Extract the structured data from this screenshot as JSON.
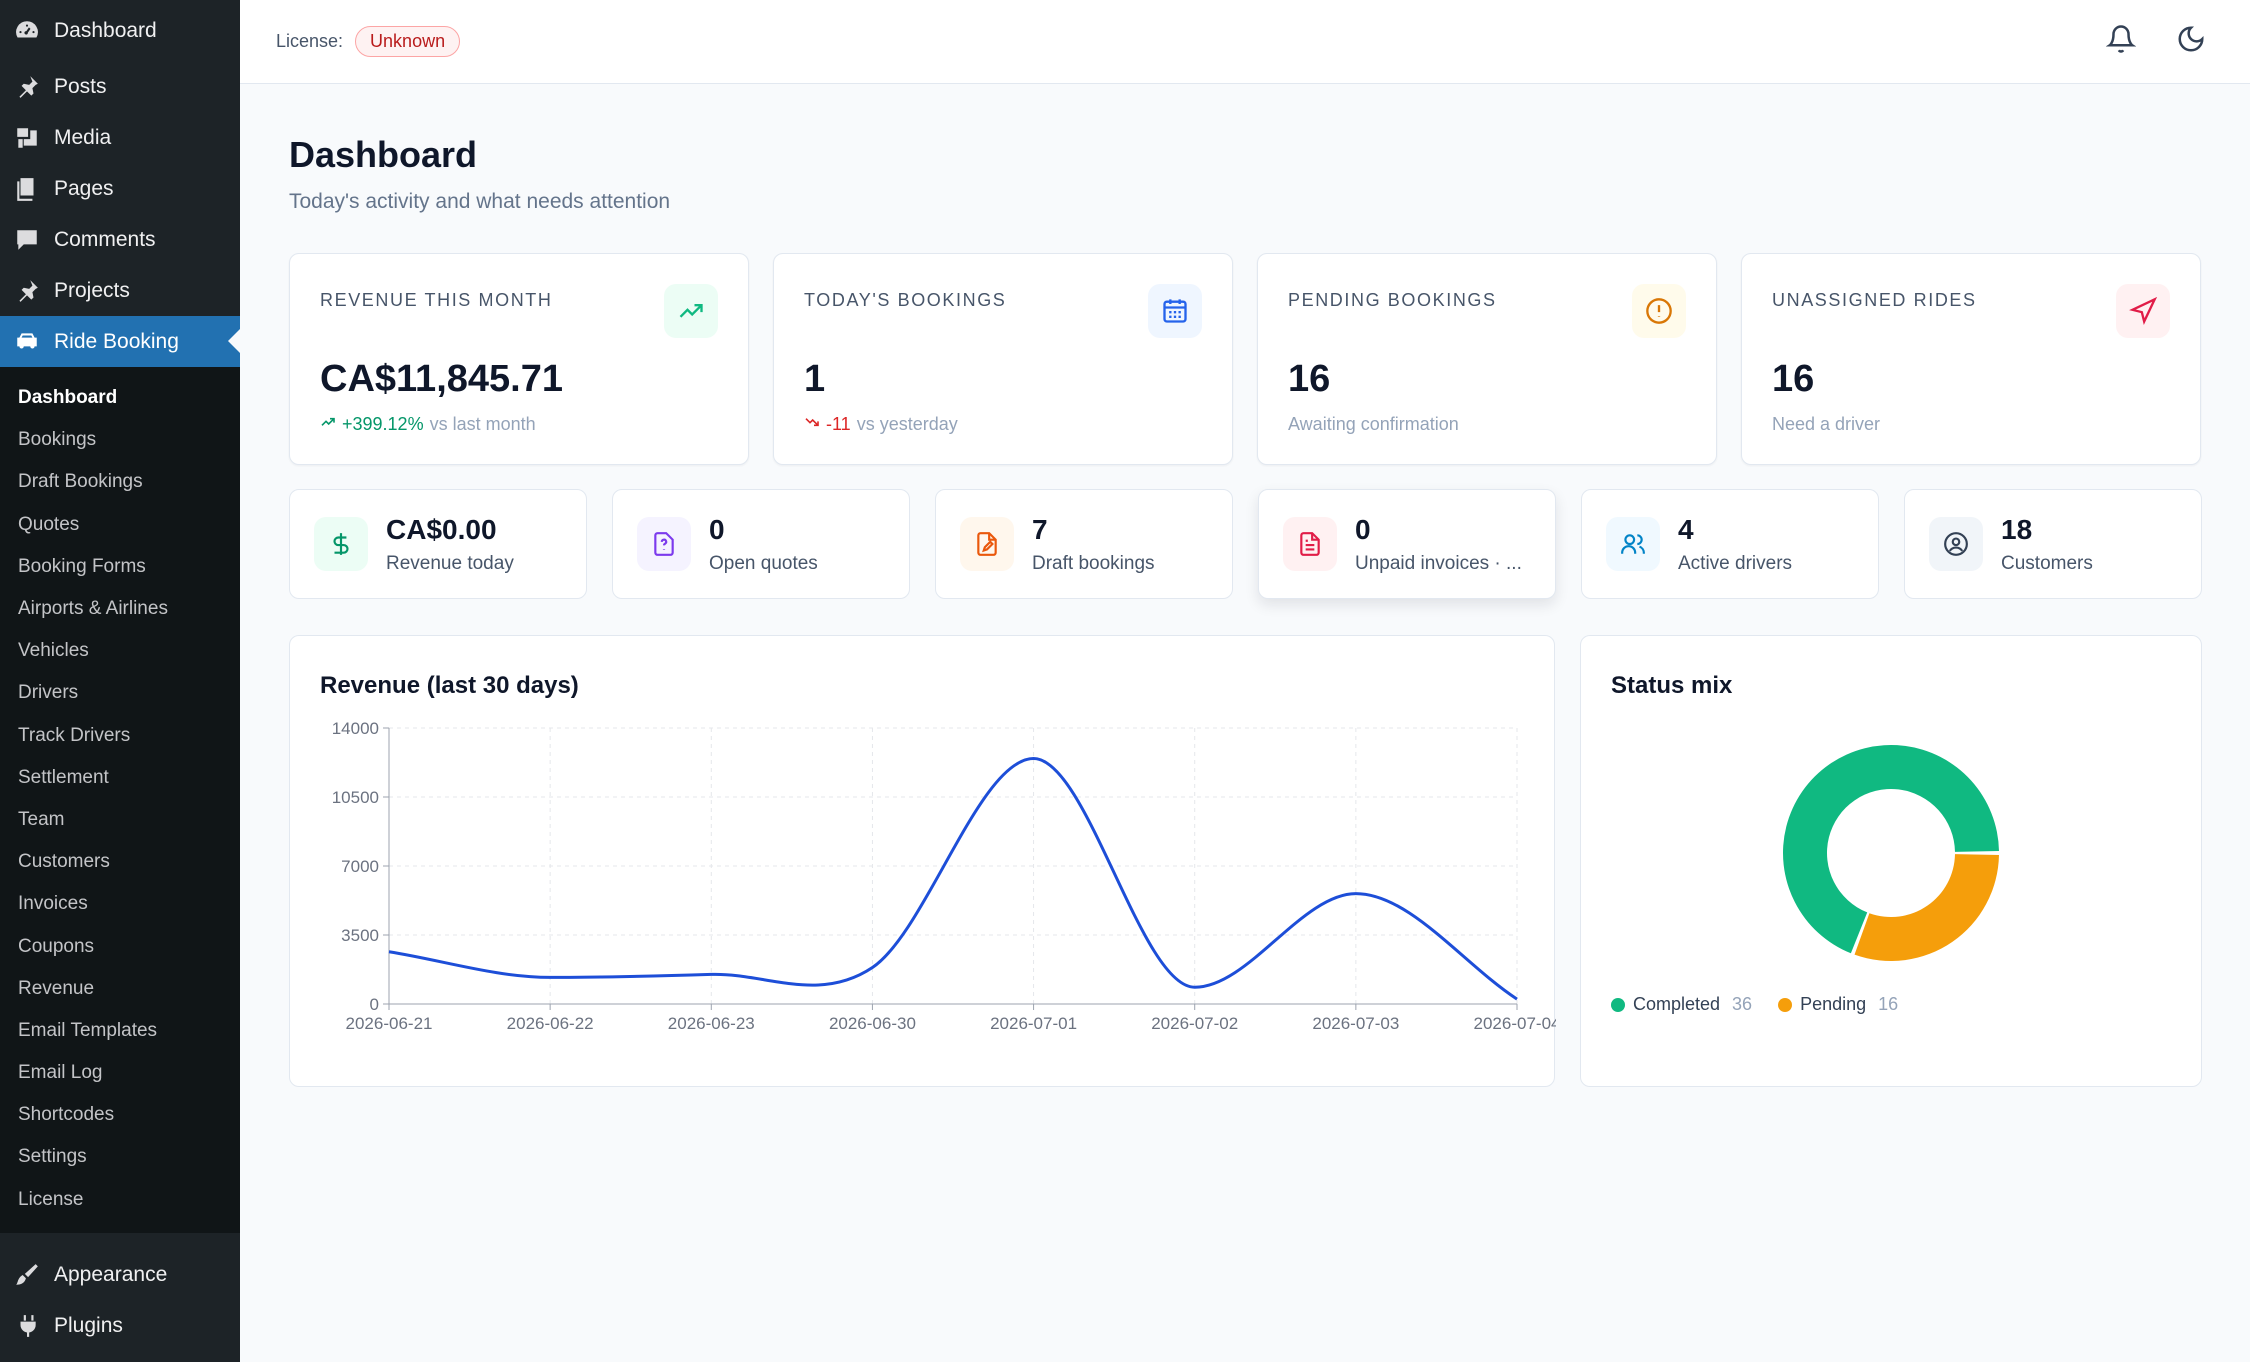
{
  "sidebar": {
    "top_items": [
      {
        "label": "Dashboard",
        "icon": "gauge-icon"
      },
      {
        "label": "Posts",
        "icon": "pushpin-icon"
      },
      {
        "label": "Media",
        "icon": "media-icon"
      },
      {
        "label": "Pages",
        "icon": "pages-icon"
      },
      {
        "label": "Comments",
        "icon": "comment-icon"
      },
      {
        "label": "Projects",
        "icon": "pushpin-icon"
      },
      {
        "label": "Ride Booking",
        "icon": "car-icon"
      }
    ],
    "submenu": [
      "Dashboard",
      "Bookings",
      "Draft Bookings",
      "Quotes",
      "Booking Forms",
      "Airports & Airlines",
      "Vehicles",
      "Drivers",
      "Track Drivers",
      "Settlement",
      "Team",
      "Customers",
      "Invoices",
      "Coupons",
      "Revenue",
      "Email Templates",
      "Email Log",
      "Shortcodes",
      "Settings",
      "License"
    ],
    "bottom_items": [
      {
        "label": "Appearance",
        "icon": "brush-icon"
      },
      {
        "label": "Plugins",
        "icon": "plug-icon"
      }
    ]
  },
  "header": {
    "license_label": "License:",
    "license_status": "Unknown"
  },
  "page": {
    "title": "Dashboard",
    "subtitle": "Today's activity and what needs attention"
  },
  "kpis": [
    {
      "label": "REVENUE THIS MONTH",
      "value": "CA$11,845.71",
      "delta": "+399.12%",
      "note": "vs last month",
      "icon": "trending-up-icon",
      "color": "#10b981",
      "bg": "#ecfdf5"
    },
    {
      "label": "TODAY'S BOOKINGS",
      "value": "1",
      "delta": "-11",
      "note": "vs yesterday",
      "icon": "calendar-icon",
      "color": "#2563eb",
      "bg": "#eff6ff"
    },
    {
      "label": "PENDING BOOKINGS",
      "value": "16",
      "note": "Awaiting confirmation",
      "icon": "alert-circle-icon",
      "color": "#d97706",
      "bg": "#fffbeb"
    },
    {
      "label": "UNASSIGNED RIDES",
      "value": "16",
      "note": "Need a driver",
      "icon": "navigation-icon",
      "color": "#e11d48",
      "bg": "#fff1f2"
    }
  ],
  "mini_stats": [
    {
      "value": "CA$0.00",
      "label": "Revenue today",
      "icon": "dollar-icon",
      "color": "#059669",
      "bg": "#ecfdf5"
    },
    {
      "value": "0",
      "label": "Open quotes",
      "icon": "file-question-icon",
      "color": "#7c3aed",
      "bg": "#f5f3ff"
    },
    {
      "value": "7",
      "label": "Draft bookings",
      "icon": "file-edit-icon",
      "color": "#ea580c",
      "bg": "#fff7ed"
    },
    {
      "value": "0",
      "label": "Unpaid invoices · ...",
      "icon": "file-text-icon",
      "color": "#e11d48",
      "bg": "#fff1f2"
    },
    {
      "value": "4",
      "label": "Active drivers",
      "icon": "users-icon",
      "color": "#0284c7",
      "bg": "#f0f9ff"
    },
    {
      "value": "18",
      "label": "Customers",
      "icon": "user-circle-icon",
      "color": "#334155",
      "bg": "#f1f5f9"
    }
  ],
  "revenue_panel": {
    "title": "Revenue (last 30 days)"
  },
  "status_panel": {
    "title": "Status mix"
  },
  "chart_data": [
    {
      "type": "line",
      "title": "Revenue (last 30 days)",
      "categories": [
        "2026-06-21",
        "2026-06-22",
        "2026-06-23",
        "2026-06-30",
        "2026-07-01",
        "2026-07-02",
        "2026-07-03",
        "2026-07-04"
      ],
      "values": [
        2650,
        1350,
        1500,
        1850,
        12450,
        850,
        5600,
        250
      ],
      "yticks": [
        0,
        3500,
        7000,
        10500,
        14000
      ],
      "ylim": [
        0,
        14000
      ],
      "grid": true,
      "series_color": "#1d4ed8"
    },
    {
      "type": "pie",
      "title": "Status mix",
      "slices": [
        {
          "label": "Completed",
          "value": 36,
          "color": "#10b981"
        },
        {
          "label": "Pending",
          "value": 16,
          "color": "#f59e0b"
        }
      ],
      "legend": "bottom-left"
    }
  ]
}
